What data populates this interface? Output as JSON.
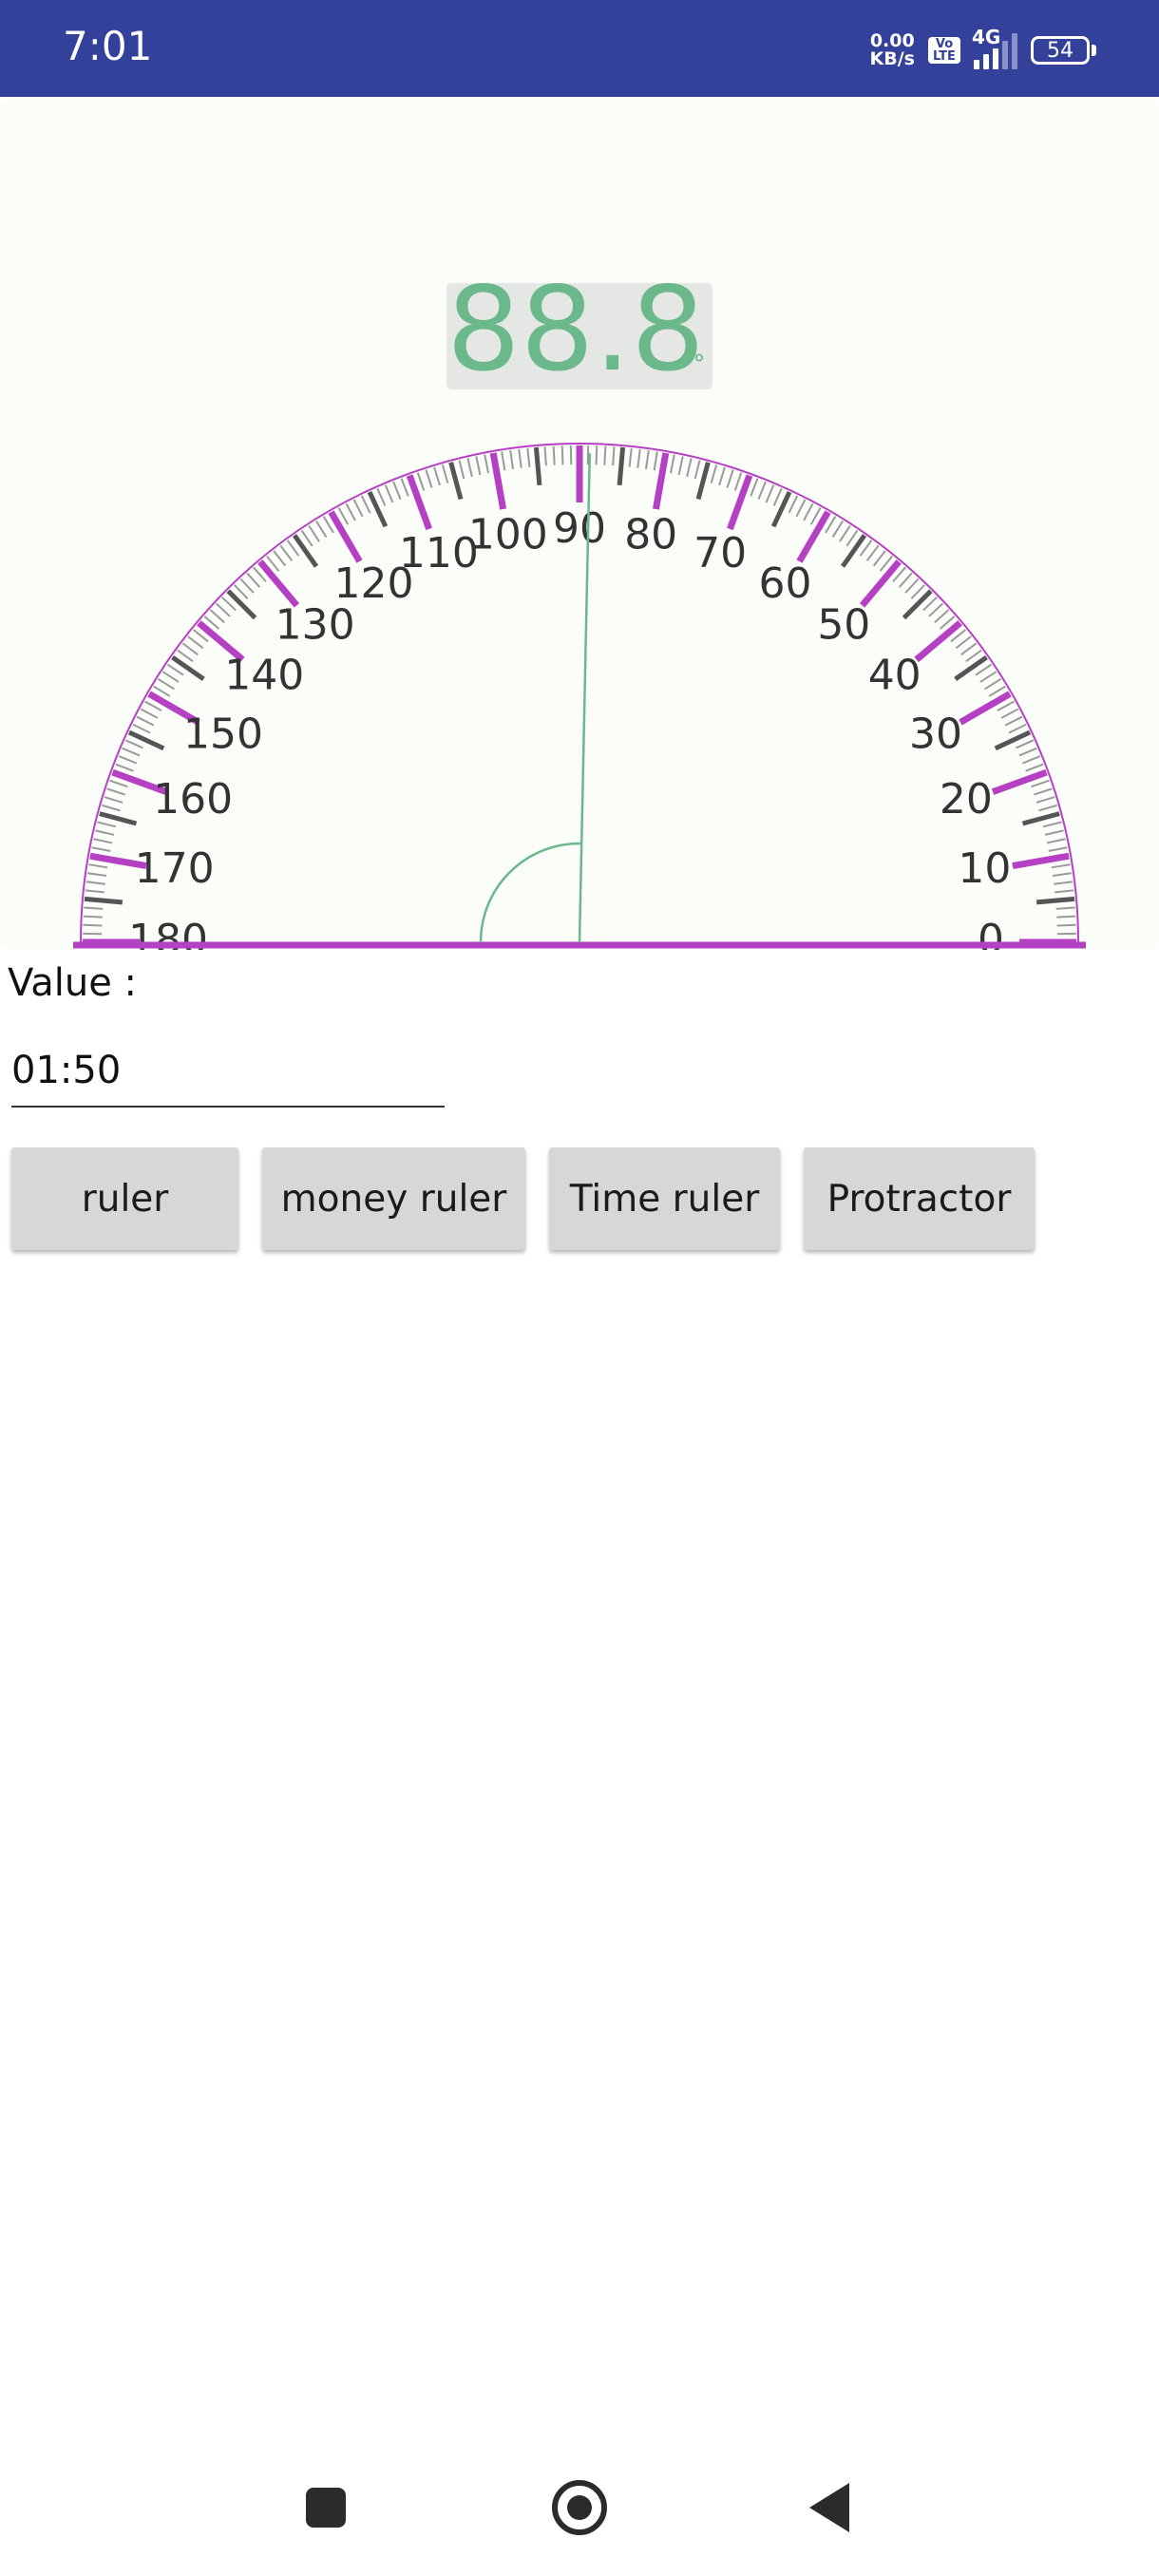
{
  "status_bar": {
    "time": "7:01",
    "net_speed_value": "0.00",
    "net_speed_unit": "KB/s",
    "volte_top": "Vo",
    "volte_bottom": "LTE",
    "network_type": "4G",
    "battery_level": "54"
  },
  "protractor": {
    "display_value": "88.8",
    "degree_symbol": "°",
    "pointer_angle_deg": 88.8,
    "scale_labels": [
      "0",
      "10",
      "20",
      "30",
      "40",
      "50",
      "60",
      "70",
      "80",
      "90",
      "100",
      "110",
      "120",
      "130",
      "140",
      "150",
      "160",
      "170",
      "180"
    ],
    "colors": {
      "accent": "#b640c4",
      "needle": "#6bb88b",
      "display_text": "#6bb88b",
      "display_bg": "#e4e7e3",
      "tick": "#555555",
      "label": "#333333"
    }
  },
  "value_field": {
    "label": "Value :",
    "value": "01:50"
  },
  "buttons": {
    "ruler": "ruler",
    "money_ruler": "money ruler",
    "time_ruler": "Time ruler",
    "protractor": "Protractor"
  },
  "status_colors": {
    "status_bar_bg": "#34419b"
  }
}
